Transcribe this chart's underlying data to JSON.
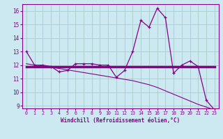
{
  "xlabel": "Windchill (Refroidissement éolien,°C)",
  "background_color": "#cce8f0",
  "grid_color": "#aacccc",
  "line_color": "#880088",
  "x": [
    0,
    1,
    2,
    3,
    4,
    5,
    6,
    7,
    8,
    9,
    10,
    11,
    12,
    13,
    14,
    15,
    16,
    17,
    18,
    19,
    20,
    21,
    22,
    23
  ],
  "y_main": [
    13.0,
    12.0,
    12.0,
    11.9,
    11.5,
    11.6,
    12.1,
    12.1,
    12.1,
    12.0,
    12.0,
    11.1,
    11.6,
    13.0,
    15.3,
    14.8,
    16.2,
    15.5,
    11.4,
    12.0,
    12.3,
    11.9,
    9.4,
    8.7
  ],
  "y_flat": [
    11.9,
    11.9,
    11.9,
    11.9,
    11.9,
    11.9,
    11.9,
    11.9,
    11.9,
    11.9,
    11.9,
    11.9,
    11.9,
    11.9,
    11.9,
    11.9,
    11.9,
    11.9,
    11.9,
    11.9,
    11.9,
    11.9,
    11.9,
    11.9
  ],
  "y_slope": [
    12.1,
    12.0,
    11.95,
    11.85,
    11.75,
    11.65,
    11.55,
    11.45,
    11.35,
    11.25,
    11.15,
    11.05,
    10.95,
    10.85,
    10.7,
    10.55,
    10.35,
    10.1,
    9.85,
    9.6,
    9.35,
    9.1,
    8.9,
    8.7
  ],
  "ylim": [
    8.8,
    16.5
  ],
  "yticks": [
    9,
    10,
    11,
    12,
    13,
    14,
    15,
    16
  ],
  "xlim": [
    -0.5,
    23.5
  ]
}
